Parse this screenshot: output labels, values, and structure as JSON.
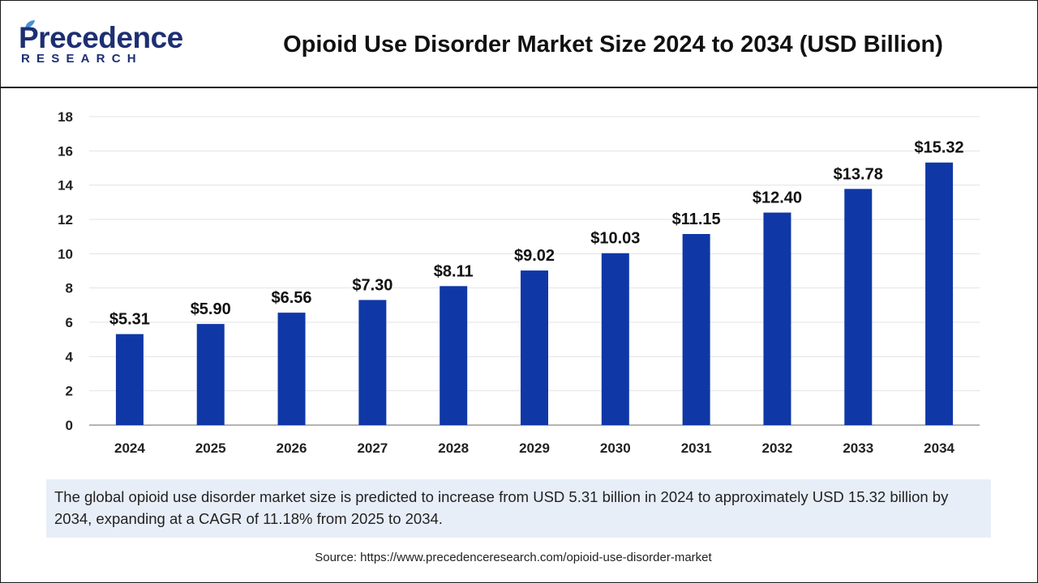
{
  "brand": {
    "name_top": "Precedence",
    "name_bottom": "RESEARCH",
    "color": "#1d2f73"
  },
  "header": {
    "title": "Opioid Use Disorder Market Size 2024 to 2034 (USD Billion)"
  },
  "chart_data": {
    "type": "bar",
    "title": "Opioid Use Disorder Market Size 2024 to 2034 (USD Billion)",
    "xlabel": "",
    "ylabel": "",
    "categories": [
      "2024",
      "2025",
      "2026",
      "2027",
      "2028",
      "2029",
      "2030",
      "2031",
      "2032",
      "2033",
      "2034"
    ],
    "values": [
      5.31,
      5.9,
      6.56,
      7.3,
      8.11,
      9.02,
      10.03,
      11.15,
      12.4,
      13.78,
      15.32
    ],
    "data_labels": [
      "$5.31",
      "$5.90",
      "$6.56",
      "$7.30",
      "$8.11",
      "$9.02",
      "$10.03",
      "$11.15",
      "$12.40",
      "$13.78",
      "$15.32"
    ],
    "ylim": [
      0,
      18
    ],
    "yticks": [
      "0",
      "2",
      "4",
      "6",
      "8",
      "10",
      "12",
      "14",
      "16",
      "18"
    ],
    "grid": true,
    "legend": "none",
    "bar_color": "#0f37a6"
  },
  "caption": {
    "text": "The global opioid use disorder market size is predicted to increase from USD 5.31 billion in 2024 to approximately USD 15.32 billion by 2034, expanding at a CAGR of 11.18% from 2025 to 2034."
  },
  "source": {
    "text": "Source: https://www.precedenceresearch.com/opioid-use-disorder-market"
  }
}
